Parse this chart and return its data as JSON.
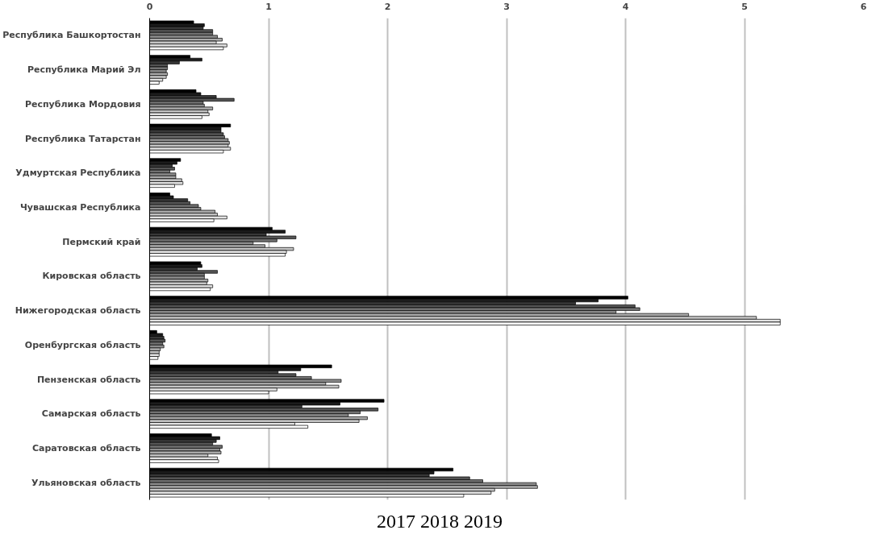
{
  "chart_data": {
    "type": "bar",
    "orientation": "horizontal",
    "categories": [
      "Республика Башкортостан",
      "Республика Марий Эл",
      "Республика Мордовия",
      "Республика Татарстан",
      "Удмуртская Республика",
      "Чувашская Республика",
      "Пермский край",
      "Кировская область",
      "Нижегородская область",
      "Оренбургская область",
      "Пензенская область",
      "Самарская область",
      "Саратовская область",
      "Ульяновская область"
    ],
    "series": [
      {
        "color": "#000000",
        "values": [
          0.37,
          0.34,
          0.39,
          0.68,
          0.26,
          0.17,
          1.03,
          0.43,
          4.02,
          0.06,
          1.53,
          1.97,
          0.52,
          2.55
        ]
      },
      {
        "color": "#1c1c1c",
        "values": [
          0.46,
          0.44,
          0.43,
          0.6,
          0.23,
          0.2,
          1.14,
          0.44,
          3.77,
          0.11,
          1.27,
          1.6,
          0.59,
          2.39
        ]
      },
      {
        "color": "#383838",
        "values": [
          0.45,
          0.25,
          0.56,
          0.6,
          0.19,
          0.32,
          0.98,
          0.4,
          3.58,
          0.12,
          1.08,
          1.28,
          0.56,
          2.35
        ]
      },
      {
        "color": "#555555",
        "values": [
          0.53,
          0.15,
          0.71,
          0.62,
          0.21,
          0.34,
          1.23,
          0.57,
          4.08,
          0.13,
          1.23,
          1.92,
          0.53,
          2.69
        ]
      },
      {
        "color": "#717171",
        "values": [
          0.53,
          0.15,
          0.45,
          0.63,
          0.17,
          0.41,
          1.07,
          0.46,
          4.12,
          0.11,
          1.36,
          1.77,
          0.61,
          2.8
        ]
      },
      {
        "color": "#8d8d8d",
        "values": [
          0.57,
          0.14,
          0.46,
          0.66,
          0.22,
          0.43,
          0.87,
          0.46,
          3.92,
          0.12,
          1.61,
          1.67,
          0.59,
          3.25
        ]
      },
      {
        "color": "#aaaaaa",
        "values": [
          0.61,
          0.15,
          0.53,
          0.67,
          0.22,
          0.55,
          0.97,
          0.49,
          4.53,
          0.09,
          1.48,
          1.83,
          0.6,
          3.26
        ]
      },
      {
        "color": "#c6c6c6",
        "values": [
          0.56,
          0.14,
          0.49,
          0.66,
          0.27,
          0.57,
          1.21,
          0.48,
          5.1,
          0.08,
          1.59,
          1.76,
          0.49,
          2.9
        ]
      },
      {
        "color": "#e2e2e2",
        "values": [
          0.65,
          0.11,
          0.5,
          0.68,
          0.28,
          0.65,
          1.15,
          0.53,
          5.3,
          0.08,
          1.07,
          1.22,
          0.57,
          2.87
        ]
      },
      {
        "color": "#ffffff",
        "values": [
          0.62,
          0.08,
          0.44,
          0.62,
          0.21,
          0.54,
          1.14,
          0.51,
          5.3,
          0.07,
          1.0,
          1.33,
          0.58,
          2.64
        ]
      }
    ],
    "xlim": [
      0,
      6
    ],
    "xticks": [
      0,
      1,
      2,
      3,
      4,
      5,
      6
    ],
    "grid": "x",
    "annotations": [
      "2017 2018 2019"
    ]
  }
}
